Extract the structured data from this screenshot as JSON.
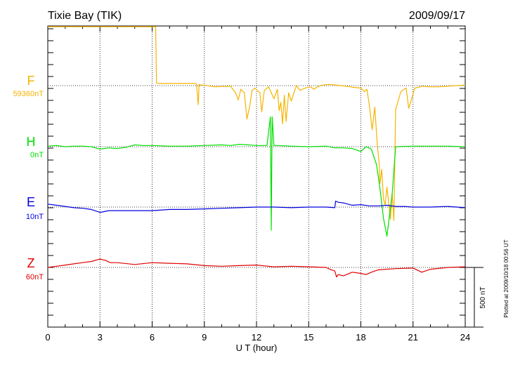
{
  "header": {
    "title": "Tixie Bay (TIK)",
    "date": "2009/09/17"
  },
  "footer": {
    "plotted_note": "Plotted at 2009/10/18 00:56 UT"
  },
  "scale_bar": {
    "label": "500 nT",
    "value_nT": 500
  },
  "chart_data": {
    "type": "line",
    "title": "Tixie Bay (TIK)",
    "date": "2009/09/17",
    "xlabel": "U T (hour)",
    "xlim": [
      0,
      24
    ],
    "x_ticks": [
      0,
      3,
      6,
      9,
      12,
      15,
      18,
      21,
      24
    ],
    "x_tick_labels": [
      "0",
      "3",
      "6",
      "9",
      "12",
      "15",
      "18",
      "21",
      "24"
    ],
    "grid": "vertical dotted at every 3 hours",
    "series": [
      {
        "name": "F",
        "baseline_label": "59360nT",
        "color": "#f5b400",
        "x": [
          0,
          0.2,
          0.5,
          1.0,
          1.5,
          2.0,
          2.4,
          2.9,
          3.0,
          3.3,
          4.0,
          4.5,
          4.8,
          5.2,
          5.6,
          5.65,
          5.75,
          5.8,
          6.0,
          6.2,
          6.25,
          6.3,
          6.5,
          7.0,
          8.0,
          8.4,
          8.55,
          8.65,
          8.7,
          8.8,
          9.0,
          9.6,
          10.5,
          10.8,
          10.95,
          11.1,
          11.3,
          11.45,
          11.6,
          11.75,
          11.9,
          12.2,
          12.3,
          12.45,
          12.7,
          13.0,
          13.2,
          13.3,
          13.4,
          13.5,
          13.6,
          13.7,
          13.85,
          14.0,
          14.2,
          14.3,
          14.5,
          14.8,
          15.1,
          15.3,
          15.5,
          15.8,
          16.2,
          16.9,
          17.4,
          17.6,
          18.0,
          18.2,
          18.35,
          18.5,
          18.65,
          18.8,
          18.95,
          19.05,
          19.1,
          19.2,
          19.3,
          19.4,
          19.5,
          19.6,
          19.7,
          19.8,
          19.9,
          20.0,
          20.3,
          20.6,
          20.75,
          20.9,
          21.1,
          21.3,
          21.5,
          21.9,
          22.5,
          23.0,
          23.5,
          24.0
        ],
        "y": [
          825,
          820,
          835,
          840,
          840,
          845,
          850,
          845,
          875,
          880,
          860,
          870,
          860,
          855,
          860,
          660,
          855,
          860,
          860,
          860,
          25,
          20,
          18,
          18,
          18,
          18,
          15,
          -160,
          10,
          5,
          5,
          -10,
          -5,
          -60,
          -120,
          -30,
          -60,
          -280,
          -180,
          -40,
          -20,
          -60,
          -220,
          -40,
          -10,
          -110,
          -30,
          -210,
          -140,
          -320,
          -80,
          -300,
          -60,
          -130,
          -40,
          0,
          -40,
          -20,
          -10,
          -30,
          -10,
          5,
          10,
          0,
          -10,
          -15,
          -20,
          -50,
          -30,
          -180,
          -370,
          -180,
          -500,
          -650,
          -820,
          -700,
          -950,
          -1000,
          -850,
          -980,
          -1120,
          -900,
          -1130,
          -200,
          -50,
          -20,
          -190,
          -120,
          -20,
          -15,
          -5,
          -10,
          -10,
          -5,
          0,
          5
        ]
      },
      {
        "name": "H",
        "baseline_label": "0nT",
        "color": "#00e000",
        "x": [
          0,
          0.5,
          1.0,
          1.5,
          2.0,
          2.5,
          3.0,
          3.5,
          4.0,
          4.5,
          5.0,
          5.5,
          6.0,
          7.0,
          8.0,
          9.0,
          10.0,
          10.5,
          11.0,
          11.5,
          12.0,
          12.6,
          12.8,
          12.85,
          12.9,
          13.0,
          13.2,
          14.0,
          15.0,
          16.0,
          16.5,
          17.0,
          17.5,
          18.0,
          18.3,
          18.6,
          18.9,
          19.1,
          19.3,
          19.5,
          19.8,
          20.0,
          21.0,
          22.0,
          23.0,
          24.0
        ],
        "y": [
          5,
          10,
          0,
          5,
          5,
          0,
          -20,
          -10,
          -15,
          -5,
          15,
          10,
          10,
          5,
          5,
          10,
          15,
          10,
          20,
          15,
          10,
          10,
          250,
          -700,
          250,
          10,
          10,
          5,
          0,
          5,
          -10,
          -10,
          -15,
          -40,
          0,
          -20,
          -150,
          -350,
          -600,
          -750,
          -400,
          0,
          5,
          5,
          5,
          0
        ]
      },
      {
        "name": "E",
        "baseline_label": "10nT",
        "color": "#0000dd",
        "x": [
          0,
          0.5,
          1.0,
          1.5,
          2.0,
          2.5,
          3.0,
          3.5,
          4.0,
          5.0,
          6.0,
          7.0,
          8.0,
          9.0,
          10.0,
          11.0,
          12.0,
          13.0,
          14.0,
          15.0,
          16.0,
          16.5,
          16.55,
          16.7,
          17.0,
          17.5,
          18.0,
          18.5,
          19.0,
          19.5,
          20.0,
          20.5,
          21.0,
          22.0,
          23.0,
          24.0
        ],
        "y": [
          25,
          15,
          5,
          -5,
          -10,
          -20,
          -45,
          -30,
          -30,
          -30,
          -30,
          -20,
          -20,
          -15,
          -10,
          -5,
          0,
          0,
          -5,
          0,
          0,
          -5,
          50,
          40,
          35,
          15,
          20,
          10,
          10,
          15,
          5,
          5,
          0,
          0,
          5,
          -5
        ]
      },
      {
        "name": "Z",
        "baseline_label": "60nT",
        "color": "#e00000",
        "x": [
          0,
          0.5,
          1.0,
          1.5,
          2.0,
          2.5,
          3.0,
          3.3,
          3.6,
          4.0,
          5.0,
          6.0,
          7.0,
          8.0,
          9.0,
          10.0,
          11.0,
          12.0,
          13.0,
          14.0,
          15.0,
          16.0,
          16.3,
          16.5,
          16.6,
          16.7,
          17.0,
          17.5,
          18.0,
          18.3,
          18.6,
          19.0,
          20.0,
          21.0,
          21.5,
          22.0,
          23.0,
          24.0
        ],
        "y": [
          0,
          10,
          20,
          30,
          40,
          50,
          70,
          60,
          40,
          40,
          25,
          40,
          35,
          30,
          15,
          10,
          15,
          20,
          5,
          10,
          5,
          0,
          -20,
          -30,
          -80,
          -60,
          -70,
          -40,
          -50,
          -60,
          -40,
          -20,
          -10,
          -5,
          -40,
          -15,
          0,
          5
        ]
      }
    ],
    "scale_bar_nT": 500
  }
}
